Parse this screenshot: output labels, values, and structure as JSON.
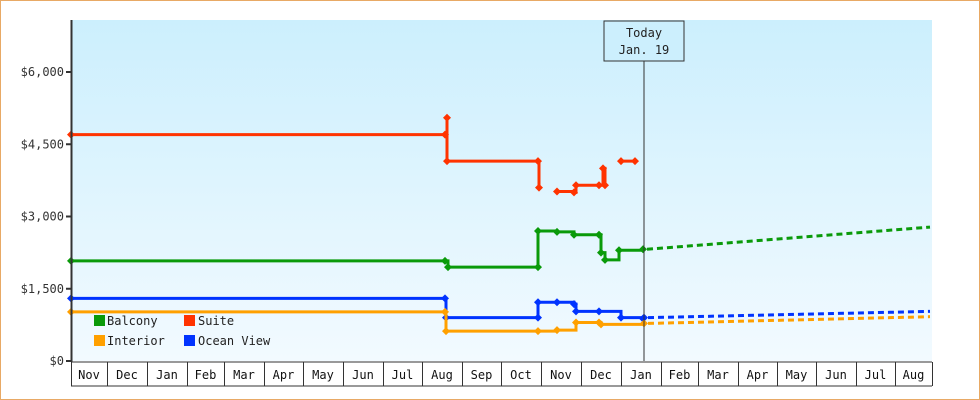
{
  "chart_data": {
    "type": "line",
    "title": "",
    "xlabel": "",
    "ylabel": "",
    "ylim": [
      0,
      7200
    ],
    "y_ticks": [
      "$0",
      "$1,500",
      "$3,000",
      "$4,500",
      "$6,000"
    ],
    "x_ticks": [
      "Nov",
      "Dec",
      "Jan",
      "Feb",
      "Mar",
      "Apr",
      "May",
      "Jun",
      "Jul",
      "Aug",
      "Sep",
      "Oct",
      "Nov",
      "Dec",
      "Jan",
      "Feb",
      "Mar",
      "Apr",
      "May",
      "Jun",
      "Jul",
      "Aug"
    ],
    "today_marker": {
      "line1": "Today",
      "line2": "Jan. 19"
    },
    "legend": [
      {
        "name": "Balcony",
        "color": "#0a9a0a"
      },
      {
        "name": "Suite",
        "color": "#ff3300"
      },
      {
        "name": "Interior",
        "color": "#ffa000"
      },
      {
        "name": "Ocean View",
        "color": "#0033ff"
      }
    ],
    "series": [
      {
        "name": "Suite",
        "color": "#ff3300",
        "points": [
          [
            "Nov (start)",
            4700
          ],
          [
            "Aug",
            4700
          ],
          [
            "Aug",
            5050
          ],
          [
            "Aug",
            4150
          ],
          [
            "Oct",
            4150
          ],
          [
            "Oct",
            3600
          ],
          [
            "Nov",
            3520
          ],
          [
            "Nov",
            3500
          ],
          [
            "Nov",
            3650
          ],
          [
            "Dec",
            3650
          ],
          [
            "Dec",
            4000
          ],
          [
            "Dec",
            3650
          ],
          [
            "Dec",
            4150
          ],
          [
            "Jan",
            4150
          ]
        ]
      },
      {
        "name": "Balcony",
        "color": "#0a9a0a",
        "points": [
          [
            "Nov (start)",
            2080
          ],
          [
            "Aug",
            2080
          ],
          [
            "Aug",
            1950
          ],
          [
            "Oct",
            1950
          ],
          [
            "Oct",
            2700
          ],
          [
            "Nov",
            2680
          ],
          [
            "Nov",
            2620
          ],
          [
            "Dec",
            2620
          ],
          [
            "Dec",
            2250
          ],
          [
            "Dec",
            2100
          ],
          [
            "Dec",
            2300
          ],
          [
            "Jan",
            2320
          ]
        ],
        "forecast_end": [
          "Aug",
          2780
        ]
      },
      {
        "name": "Ocean View",
        "color": "#0033ff",
        "points": [
          [
            "Nov (start)",
            1300
          ],
          [
            "Aug",
            1300
          ],
          [
            "Aug",
            900
          ],
          [
            "Oct",
            900
          ],
          [
            "Oct",
            1220
          ],
          [
            "Nov",
            1220
          ],
          [
            "Nov",
            1180
          ],
          [
            "Nov",
            1030
          ],
          [
            "Dec",
            1030
          ],
          [
            "Dec",
            900
          ],
          [
            "Jan",
            880
          ],
          [
            "Jan",
            900
          ]
        ],
        "forecast_end": [
          "Aug",
          1030
        ]
      },
      {
        "name": "Interior",
        "color": "#ffa000",
        "points": [
          [
            "Nov (start)",
            1020
          ],
          [
            "Aug",
            1020
          ],
          [
            "Aug",
            620
          ],
          [
            "Oct",
            620
          ],
          [
            "Nov",
            640
          ],
          [
            "Nov",
            800
          ],
          [
            "Dec",
            800
          ],
          [
            "Dec",
            760
          ],
          [
            "Jan",
            780
          ]
        ],
        "forecast_end": [
          "Aug",
          920
        ]
      }
    ]
  }
}
